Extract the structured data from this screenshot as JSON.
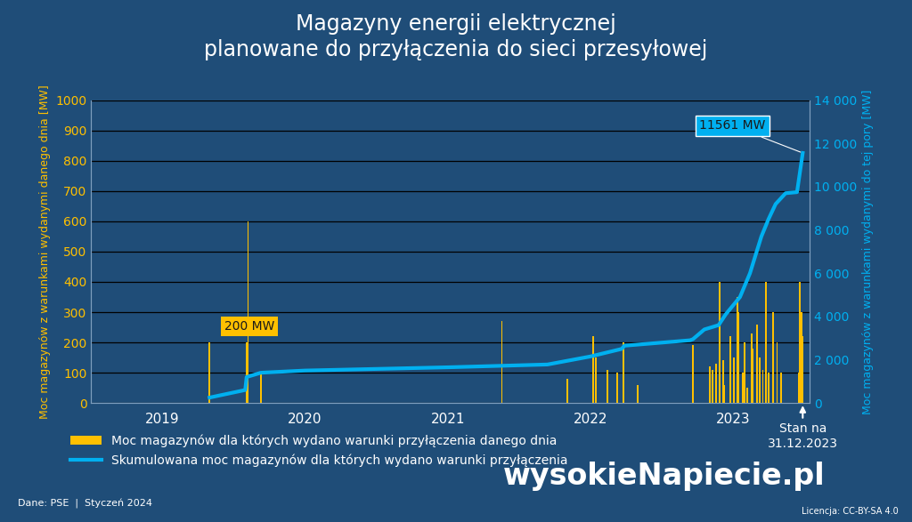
{
  "chart_data": {
    "type": "bar_line",
    "title": "Magazyny energii elektrycznej\nplanowane do przyłączenia do sieci przesyłowej",
    "xlim": [
      2019.0,
      2024.04
    ],
    "xticks": [
      {
        "value": 2019.5,
        "label": "2019"
      },
      {
        "value": 2020.5,
        "label": "2020"
      },
      {
        "value": 2021.5,
        "label": "2021"
      },
      {
        "value": 2022.5,
        "label": "2022"
      },
      {
        "value": 2023.5,
        "label": "2023"
      }
    ],
    "ylim": [
      0,
      1000
    ],
    "yticks": [
      0,
      100,
      200,
      300,
      400,
      500,
      600,
      700,
      800,
      900,
      1000
    ],
    "y2lim": [
      0,
      14000
    ],
    "y2ticks": [
      0,
      {
        "value": 2000,
        "label": "2 000"
      },
      {
        "value": 4000,
        "label": "4 000"
      },
      {
        "value": 6000,
        "label": "6 000"
      },
      {
        "value": 8000,
        "label": "8 000"
      },
      {
        "value": 10000,
        "label": "10 000"
      },
      {
        "value": 12000,
        "label": "12 000"
      },
      {
        "value": 14000,
        "label": "14 000"
      }
    ],
    "y_label": "Moc magazynów z warunkami wydanymi danego dnia [MW]",
    "y2_label": "Moc magazynów z warunkami wydanymi do tej pory [MW]",
    "grid": true,
    "legend": "lower left",
    "series": [
      {
        "name": "Moc magazynów dla których wydano warunki przyłączenia danego dnia",
        "type": "bar",
        "color": "#ffc000",
        "x": [
          2019.83,
          2020.09,
          2020.1,
          2020.19,
          2021.88,
          2022.34,
          2022.52,
          2022.54,
          2022.62,
          2022.69,
          2022.73,
          2022.83,
          2023.22,
          2023.34,
          2023.36,
          2023.38,
          2023.41,
          2023.43,
          2023.44,
          2023.48,
          2023.51,
          2023.53,
          2023.54,
          2023.57,
          2023.58,
          2023.6,
          2023.63,
          2023.64,
          2023.67,
          2023.69,
          2023.71,
          2023.73,
          2023.75,
          2023.78,
          2023.81,
          2023.84,
          2023.96,
          2023.97,
          2023.98,
          2023.99
        ],
        "values": [
          200,
          200,
          600,
          100,
          270,
          80,
          220,
          150,
          110,
          100,
          200,
          60,
          190,
          120,
          110,
          130,
          400,
          140,
          60,
          220,
          150,
          350,
          300,
          100,
          200,
          50,
          230,
          180,
          260,
          150,
          110,
          400,
          100,
          300,
          200,
          100,
          100,
          400,
          300,
          220
        ]
      },
      {
        "name": "Skumulowana moc magazynów dla których wydano warunki przyłączenia",
        "type": "line",
        "color": "#00b0f0",
        "axis": "y2",
        "x": [
          2019.83,
          2020.08,
          2020.09,
          2020.19,
          2020.5,
          2021.5,
          2022.2,
          2022.5,
          2022.72,
          2022.74,
          2023.2,
          2023.22,
          2023.3,
          2023.4,
          2023.45,
          2023.55,
          2023.62,
          2023.7,
          2023.75,
          2023.8,
          2023.87,
          2023.95,
          2023.99
        ],
        "values": [
          250,
          600,
          1200,
          1400,
          1500,
          1650,
          1780,
          2150,
          2500,
          2650,
          2900,
          2950,
          3400,
          3600,
          4100,
          4900,
          6000,
          7700,
          8500,
          9200,
          9700,
          9750,
          11561
        ]
      }
    ],
    "annotations": [
      "200 MW",
      "11561 MW",
      "Stan na\n31.12.2023"
    ],
    "source": "Dane: PSE  |  Styczeń 2024",
    "license": "Licencja: CC-BY-SA 4.0",
    "logo": "wysokieNapiecie.pl"
  }
}
